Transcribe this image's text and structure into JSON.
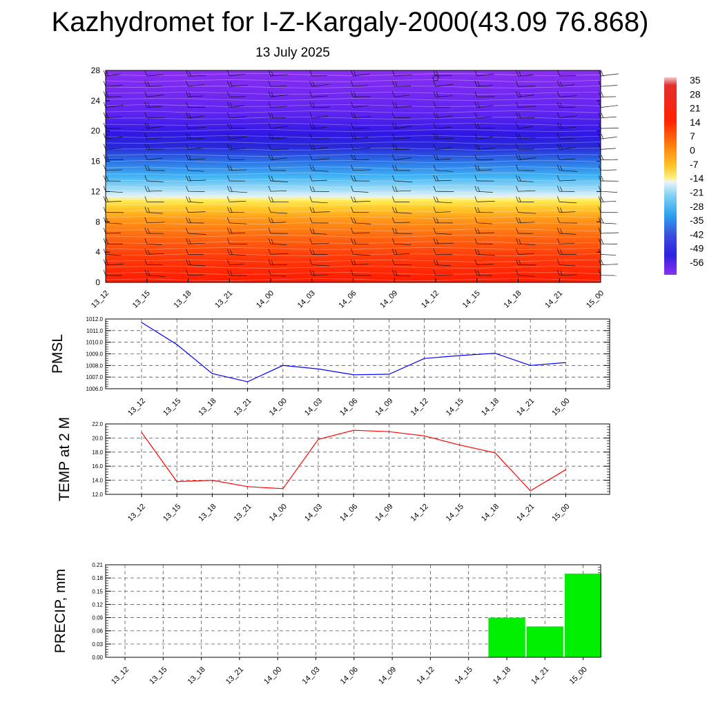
{
  "title": "Kazhydromet for I-Z-Kargaly-2000(43.09 76.868)",
  "subtitle": "13 July 2025",
  "time_labels": [
    "13_12",
    "13_15",
    "13_18",
    "13_21",
    "14_00",
    "14_03",
    "14_06",
    "14_09",
    "14_12",
    "14_15",
    "14_18",
    "14_21",
    "15_00"
  ],
  "colors": {
    "pmsl_line": "#0000ff",
    "temp_line": "#ff0000",
    "precip_bar": "#00ee00"
  },
  "chart_data": [
    {
      "type": "heatmap",
      "name": "cross-section",
      "y_ticks": [
        0,
        4,
        8,
        12,
        16,
        20,
        24,
        28
      ],
      "ylim": [
        0,
        28
      ],
      "colorbar_labels": [
        "35",
        "28",
        "21",
        "14",
        "7",
        "0",
        "-7",
        "-14",
        "-21",
        "-28",
        "-35",
        "-42",
        "-49",
        "-56"
      ],
      "note_marker": "wind barbs overlay"
    },
    {
      "type": "line",
      "ylabel": "PMSL",
      "ylim": [
        1006.0,
        1012.0
      ],
      "y_ticks": [
        "1012.0",
        "1011.0",
        "1010.0",
        "1009.0",
        "1008.0",
        "1007.0",
        "1006.0"
      ],
      "y_tick_values": [
        1012,
        1011,
        1010,
        1009,
        1008,
        1007,
        1006
      ],
      "values": [
        1011.7,
        1009.8,
        1007.3,
        1006.6,
        1008.0,
        1007.7,
        1007.2,
        1007.25,
        1008.6,
        1008.85,
        1009.05,
        1008.0,
        1008.25
      ]
    },
    {
      "type": "line",
      "ylabel": "TEMP at 2 M",
      "ylim": [
        12.0,
        22.0
      ],
      "y_ticks": [
        "22.0",
        "20.0",
        "18.0",
        "16.0",
        "14.0",
        "12.0"
      ],
      "y_tick_values": [
        22,
        20,
        18,
        16,
        14,
        12
      ],
      "values": [
        20.8,
        13.8,
        14.0,
        13.1,
        12.8,
        19.8,
        21.1,
        20.9,
        20.3,
        19.0,
        17.9,
        12.5,
        15.5
      ]
    },
    {
      "type": "bar",
      "ylabel": "PRECIP, mm",
      "ylim": [
        0,
        0.21
      ],
      "y_ticks": [
        "0.21",
        "0.18",
        "0.15",
        "0.12",
        "0.09",
        "0.06",
        "0.03",
        "0.00"
      ],
      "y_tick_values": [
        0.21,
        0.18,
        0.15,
        0.12,
        0.09,
        0.06,
        0.03,
        0.0
      ],
      "values": [
        0,
        0,
        0,
        0,
        0,
        0,
        0,
        0,
        0,
        0,
        0.09,
        0.07,
        0.19
      ]
    }
  ]
}
